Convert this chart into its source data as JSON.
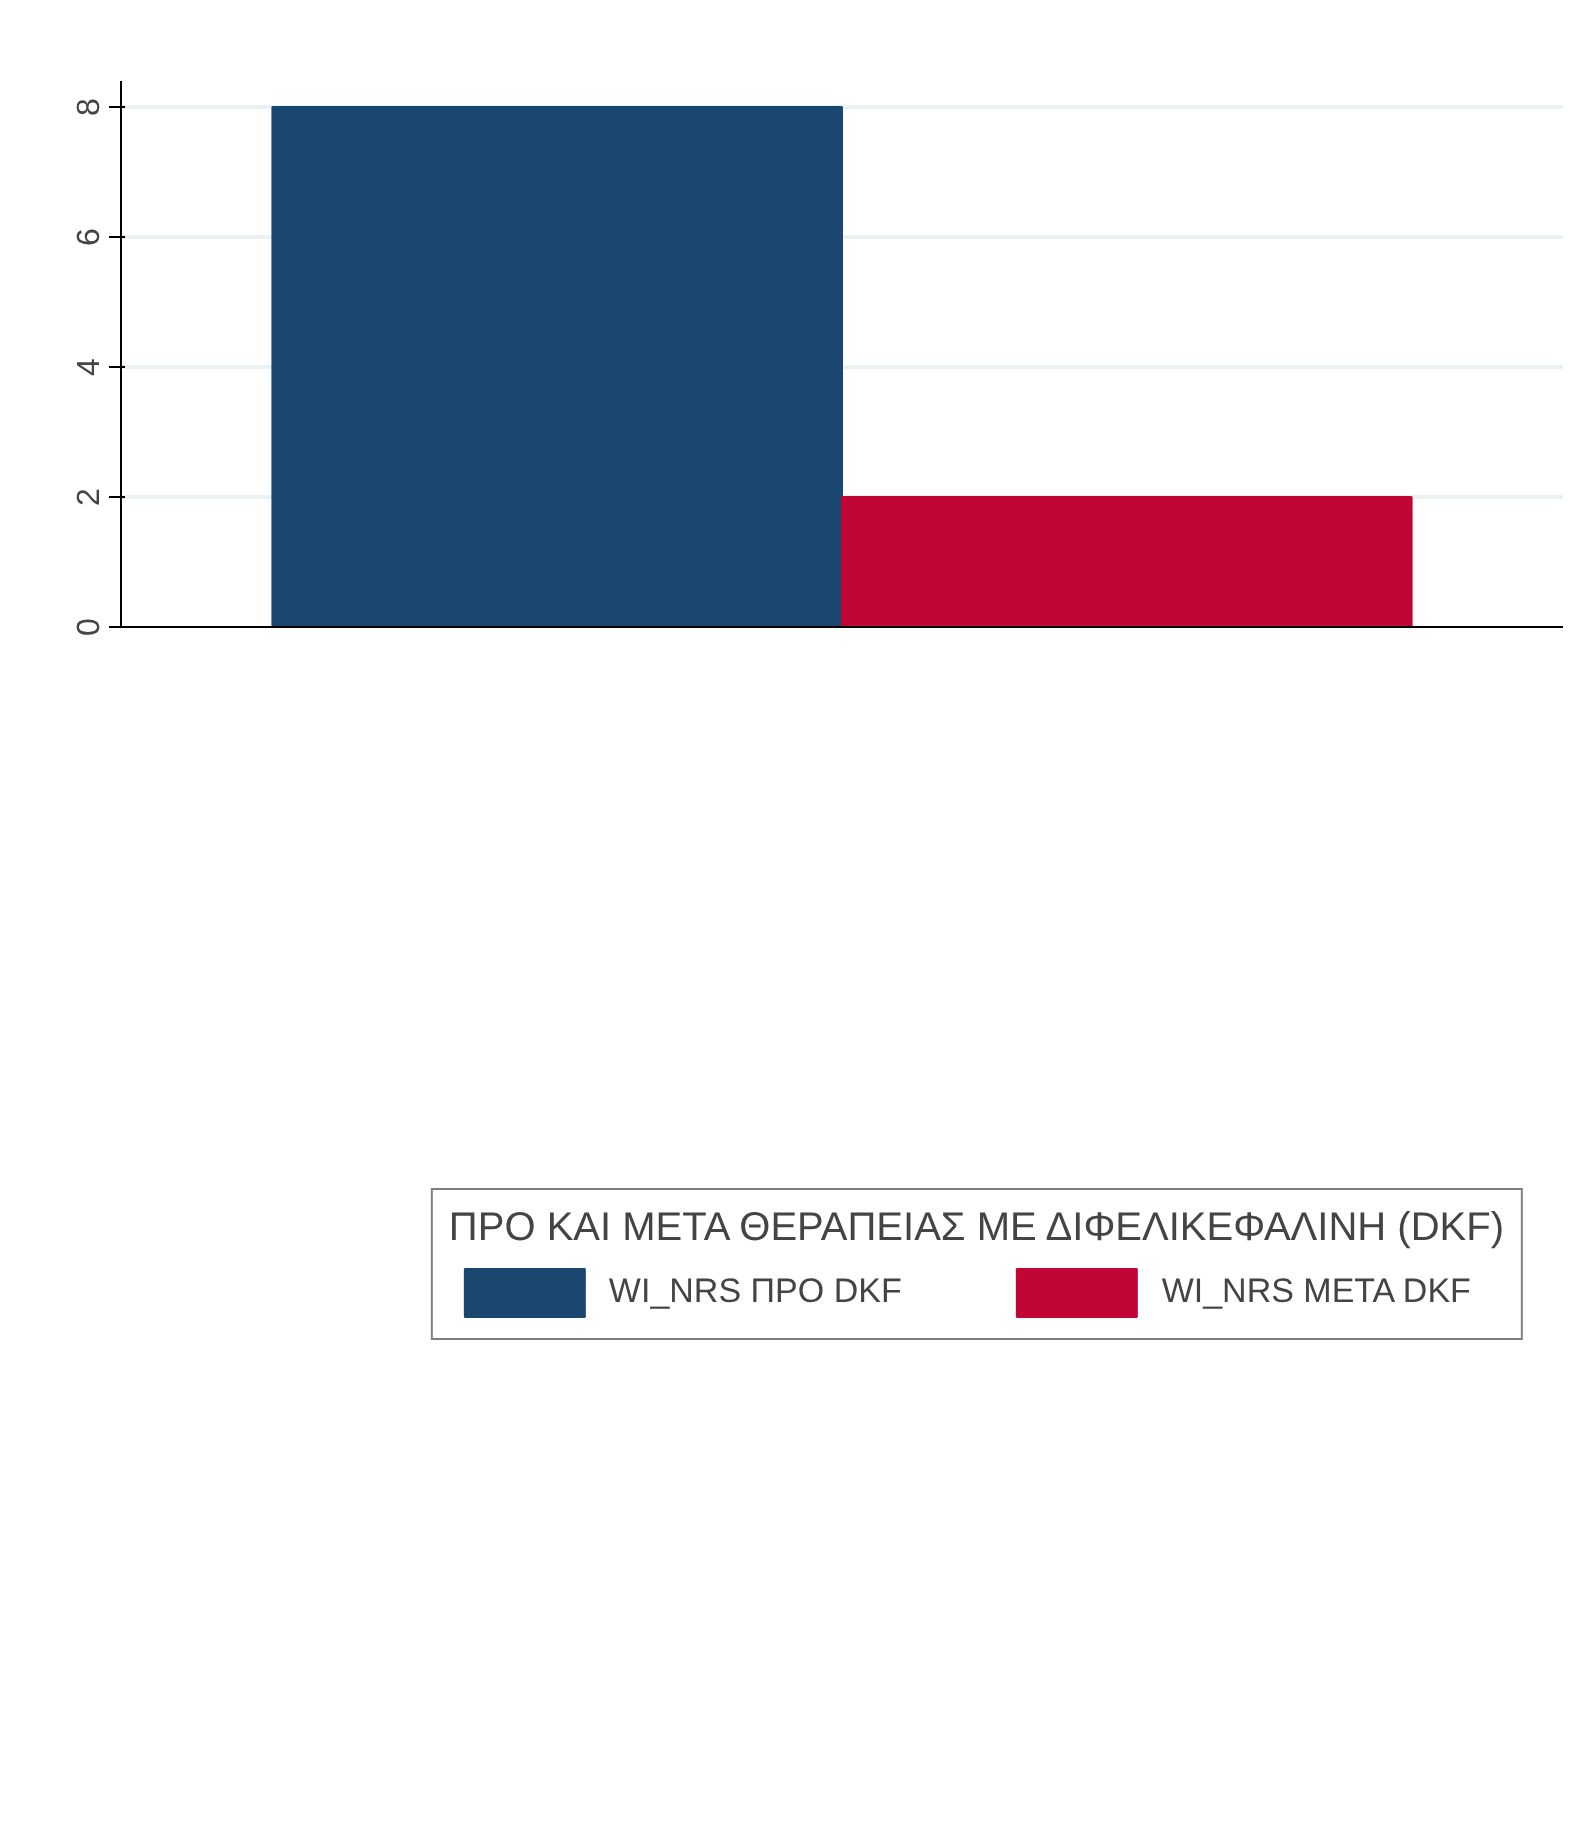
{
  "chart_data": {
    "type": "bar",
    "categories": [
      null
    ],
    "series": [
      {
        "name": "WI_NRS ΠΡΟ DKF",
        "color": "#1a476f",
        "values": [
          8
        ]
      },
      {
        "name": "WI_NRS ΜΕΤΑ DKF",
        "color": "#c10534",
        "values": [
          2
        ]
      }
    ],
    "legend_title": "ΠΡΟ ΚΑΙ ΜΕΤΑ ΘΕΡΑΠΕΙΑΣ ΜΕ ΔΙΦΕΛΙΚΕΦΑΛΙΝΗ (DKF)",
    "ylim": [
      0,
      8.4
    ],
    "yticks": [
      0,
      2,
      4,
      6,
      8
    ],
    "grid": "y",
    "legend": "bottom"
  }
}
